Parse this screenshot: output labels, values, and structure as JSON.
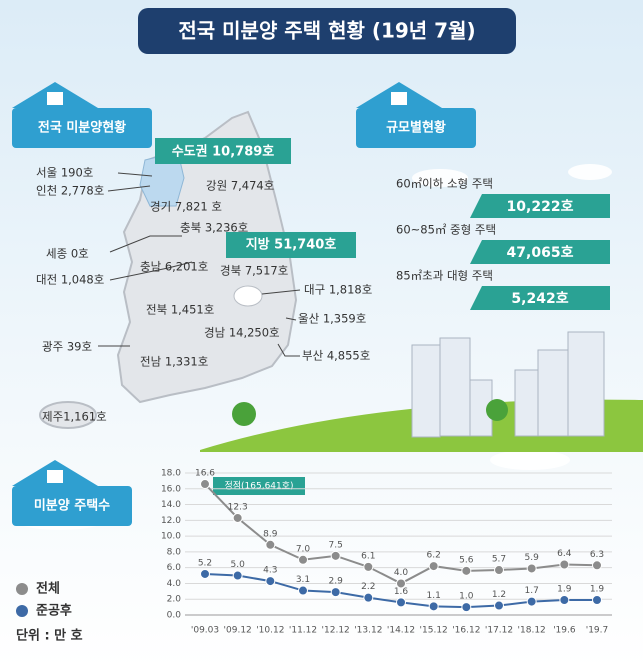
{
  "header": {
    "title": "전국 미분양 주택 현황 (19년 7월)"
  },
  "map": {
    "badge": "전국 미분양현황",
    "capital": "수도권 10,789호",
    "local": "지방 51,740호",
    "regions": [
      "서울  190호",
      "인천 2,778호",
      "경기 7,821 호",
      "강원 7,474호",
      "충북 3,236호",
      "세종 0호",
      "충남 6,201호",
      "대전 1,048호",
      "경북 7,517호",
      "대구 1,818호",
      "전북 1,451호",
      "울산 1,359호",
      "경남 14,250호",
      "광주 39호",
      "전남 1,331호",
      "부산 4,855호",
      "제주1,161호"
    ]
  },
  "size": {
    "badge": "규모별현황",
    "items": [
      {
        "label": "60㎡이하 소형 주택",
        "value": "10,222호"
      },
      {
        "label": "60~85㎡ 중형 주택",
        "value": "47,065호"
      },
      {
        "label": "85㎡초과 대형 주택",
        "value": "5,242호"
      }
    ]
  },
  "chart_data": {
    "type": "line",
    "title": "미분양 주택수",
    "categories": [
      "'09.03",
      "'09.12",
      "'10.12",
      "'11.12",
      "'12.12",
      "'13.12",
      "'14.12",
      "'15.12",
      "'16.12",
      "'17.12",
      "'18.12",
      "'19.6",
      "'19.7"
    ],
    "series": [
      {
        "name": "전체",
        "color": "#8c8c8c",
        "values": [
          16.6,
          12.3,
          8.9,
          7.0,
          7.5,
          6.1,
          4.0,
          6.2,
          5.6,
          5.7,
          5.9,
          6.4,
          6.3
        ],
        "value_labels": [
          "16.6",
          "12.3",
          "8.9",
          "7.0",
          "7.5",
          "6.1",
          "4.0",
          "6.2",
          "5.6",
          "5.7",
          "5.9",
          "6.4",
          "6.3"
        ]
      },
      {
        "name": "준공후",
        "color": "#3d6aa6",
        "values": [
          5.2,
          5.0,
          4.3,
          3.1,
          2.9,
          2.2,
          1.6,
          1.1,
          1.0,
          1.2,
          1.7,
          1.9,
          1.9
        ],
        "value_labels": [
          "5.2",
          "5.0",
          "4.3",
          "3.1",
          "2.9",
          "2.2",
          "1.6",
          "1.1",
          "1.0",
          "1.2",
          "1.7",
          "1.9",
          "1.9"
        ]
      }
    ],
    "ylim": [
      0,
      18
    ],
    "yticks": [
      {
        "value": 0,
        "label": "0.0"
      },
      {
        "value": 2,
        "label": "2.0"
      },
      {
        "value": 4,
        "label": "4.0"
      },
      {
        "value": 6,
        "label": "6.0"
      },
      {
        "value": 8,
        "label": "8.0"
      },
      {
        "value": 10,
        "label": "10.0"
      },
      {
        "value": 12,
        "label": "12.0"
      },
      {
        "value": 14,
        "label": "14.0"
      },
      {
        "value": 16,
        "label": "16.0"
      },
      {
        "value": 18,
        "label": "18.0"
      }
    ],
    "grid": true,
    "annotation": "정점(165,641호)",
    "unit": "단위 : 만 호"
  }
}
